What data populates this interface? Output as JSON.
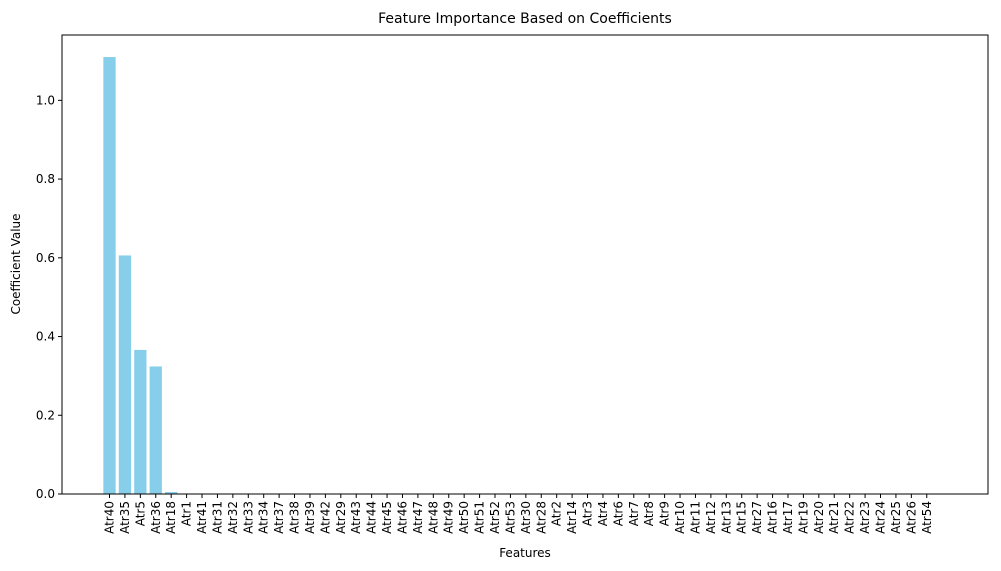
{
  "chart_data": {
    "type": "bar",
    "title": "Feature Importance Based on Coefficients",
    "xlabel": "Features",
    "ylabel": "Coefficient Value",
    "ylim": [
      0,
      1.166
    ],
    "yticks": [
      "0.0",
      "0.2",
      "0.4",
      "0.6",
      "0.8",
      "1.0"
    ],
    "bar_color": "#87ceeb",
    "grid": false,
    "categories": [
      "Atr40",
      "Atr35",
      "Atr5",
      "Atr36",
      "Atr18",
      "Atr1",
      "Atr41",
      "Atr31",
      "Atr32",
      "Atr33",
      "Atr34",
      "Atr37",
      "Atr38",
      "Atr39",
      "Atr42",
      "Atr29",
      "Atr43",
      "Atr44",
      "Atr45",
      "Atr46",
      "Atr47",
      "Atr48",
      "Atr49",
      "Atr50",
      "Atr51",
      "Atr52",
      "Atr53",
      "Atr30",
      "Atr28",
      "Atr2",
      "Atr14",
      "Atr3",
      "Atr4",
      "Atr6",
      "Atr7",
      "Atr8",
      "Atr9",
      "Atr10",
      "Atr11",
      "Atr12",
      "Atr13",
      "Atr15",
      "Atr27",
      "Atr16",
      "Atr17",
      "Atr19",
      "Atr20",
      "Atr21",
      "Atr22",
      "Atr23",
      "Atr24",
      "Atr25",
      "Atr26",
      "Atr54"
    ],
    "values": [
      1.11,
      0.606,
      0.366,
      0.324,
      0.005,
      0,
      0,
      0,
      0,
      0,
      0,
      0,
      0,
      0,
      0,
      0,
      0,
      0,
      0,
      0,
      0,
      0,
      0,
      0,
      0,
      0,
      0,
      0,
      0,
      0,
      0,
      0,
      0,
      0,
      0,
      0,
      0,
      0,
      0,
      0,
      0,
      0,
      0,
      0,
      0,
      0,
      0,
      0,
      0,
      0,
      0,
      0,
      0,
      0
    ]
  }
}
